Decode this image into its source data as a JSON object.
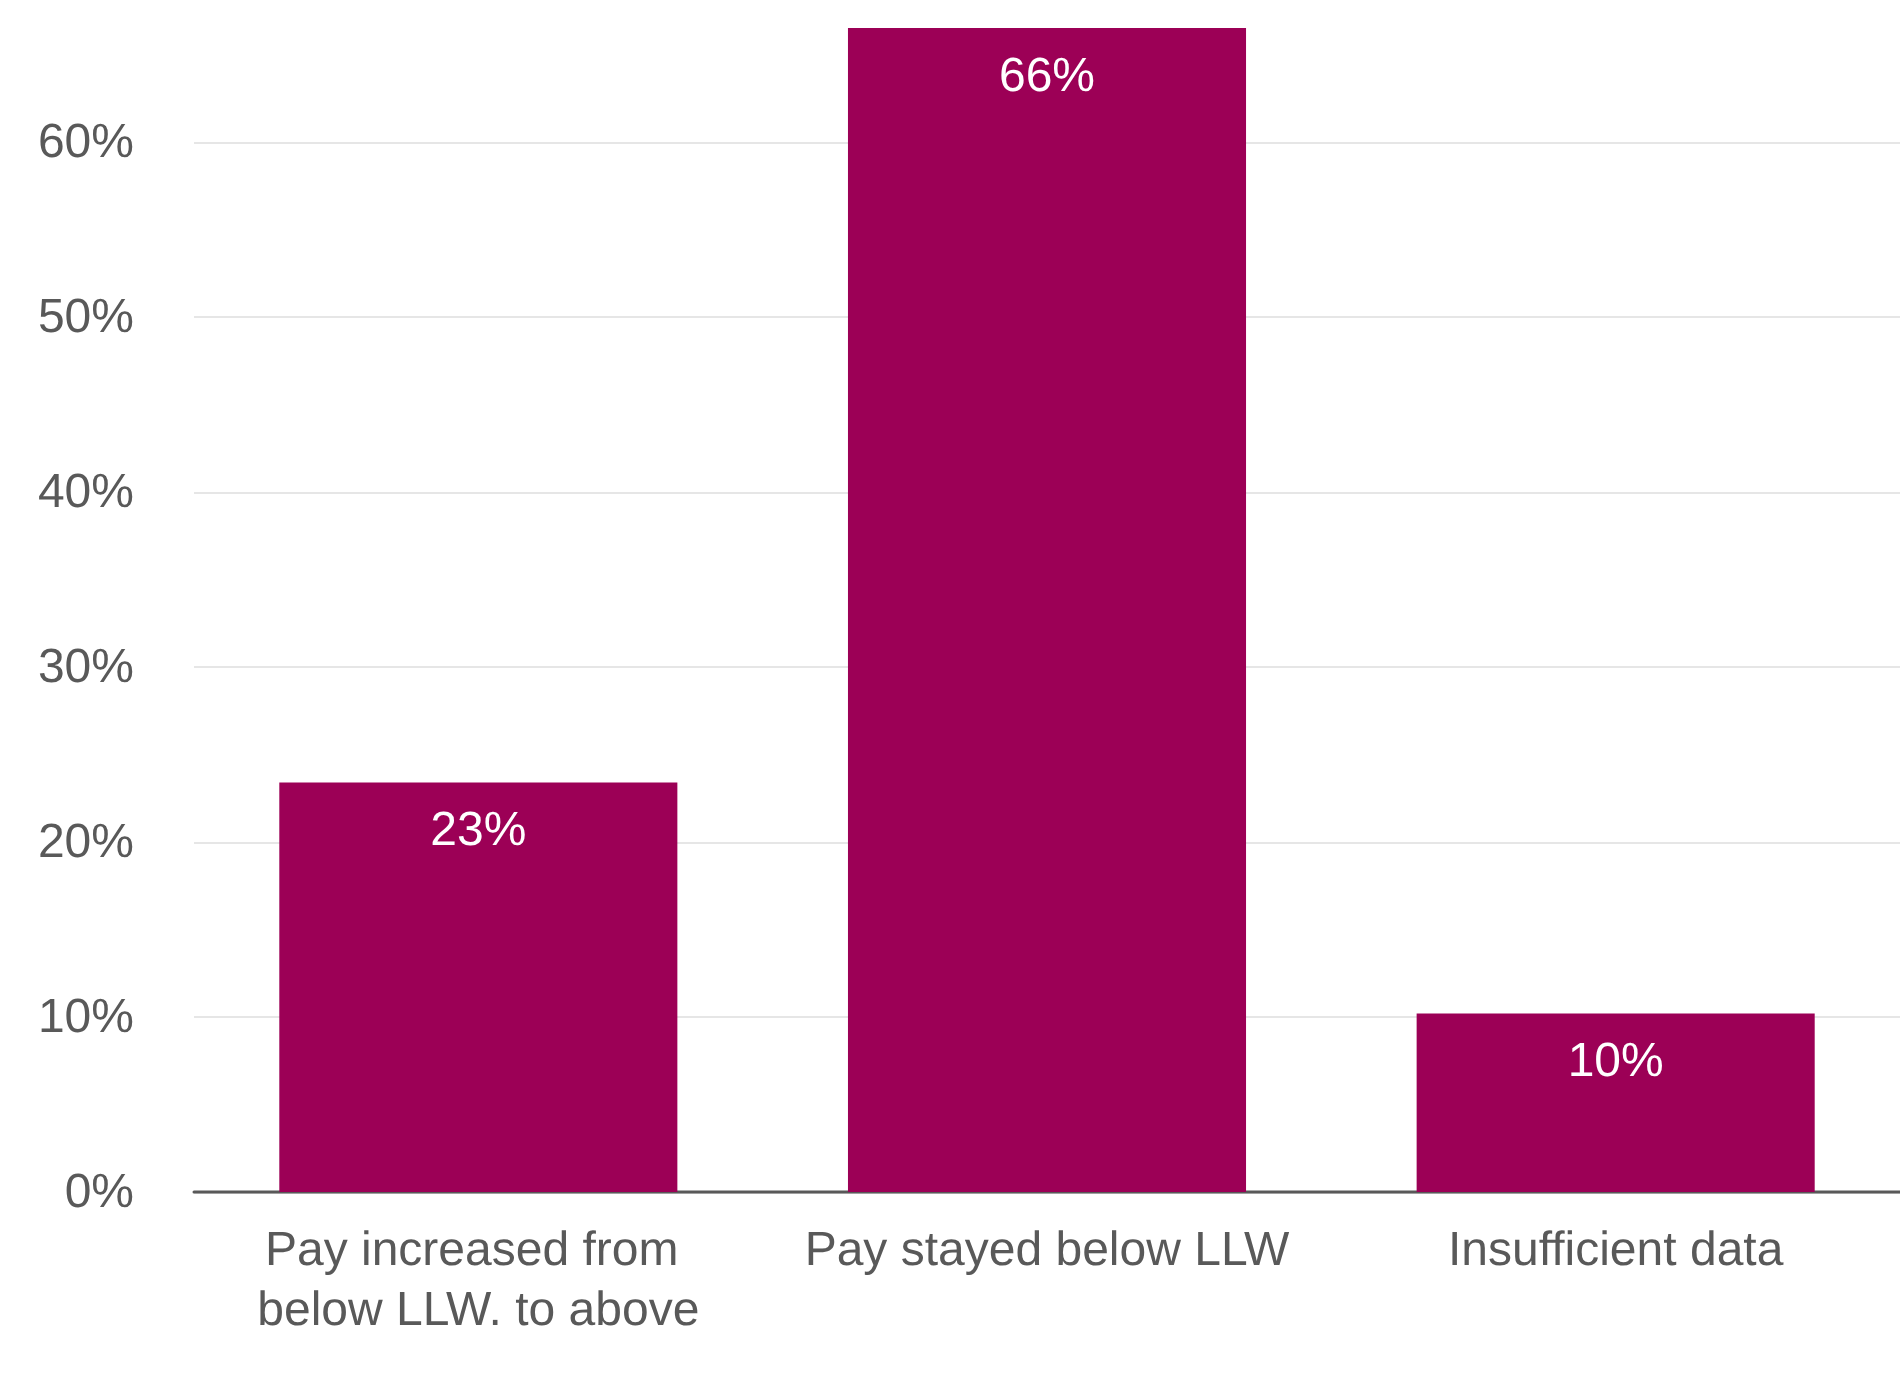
{
  "chart_data": {
    "type": "bar",
    "categories": [
      "Pay increased from below LLW. to above",
      "Pay stayed below LLW",
      "Insufficient data"
    ],
    "values": [
      23.4,
      66.5,
      10.2
    ],
    "value_labels": [
      "23%",
      "66%",
      "10%"
    ],
    "color": "#9c0056",
    "ylim": [
      0,
      66.5
    ],
    "yticks": [
      {
        "value": 0,
        "label": "0%"
      },
      {
        "value": 10,
        "label": "10%"
      },
      {
        "value": 20,
        "label": "20%"
      },
      {
        "value": 30,
        "label": "30%"
      },
      {
        "value": 40,
        "label": "40%"
      },
      {
        "value": 50,
        "label": "50%"
      },
      {
        "value": 60,
        "label": "60%"
      }
    ],
    "grid": "y"
  }
}
